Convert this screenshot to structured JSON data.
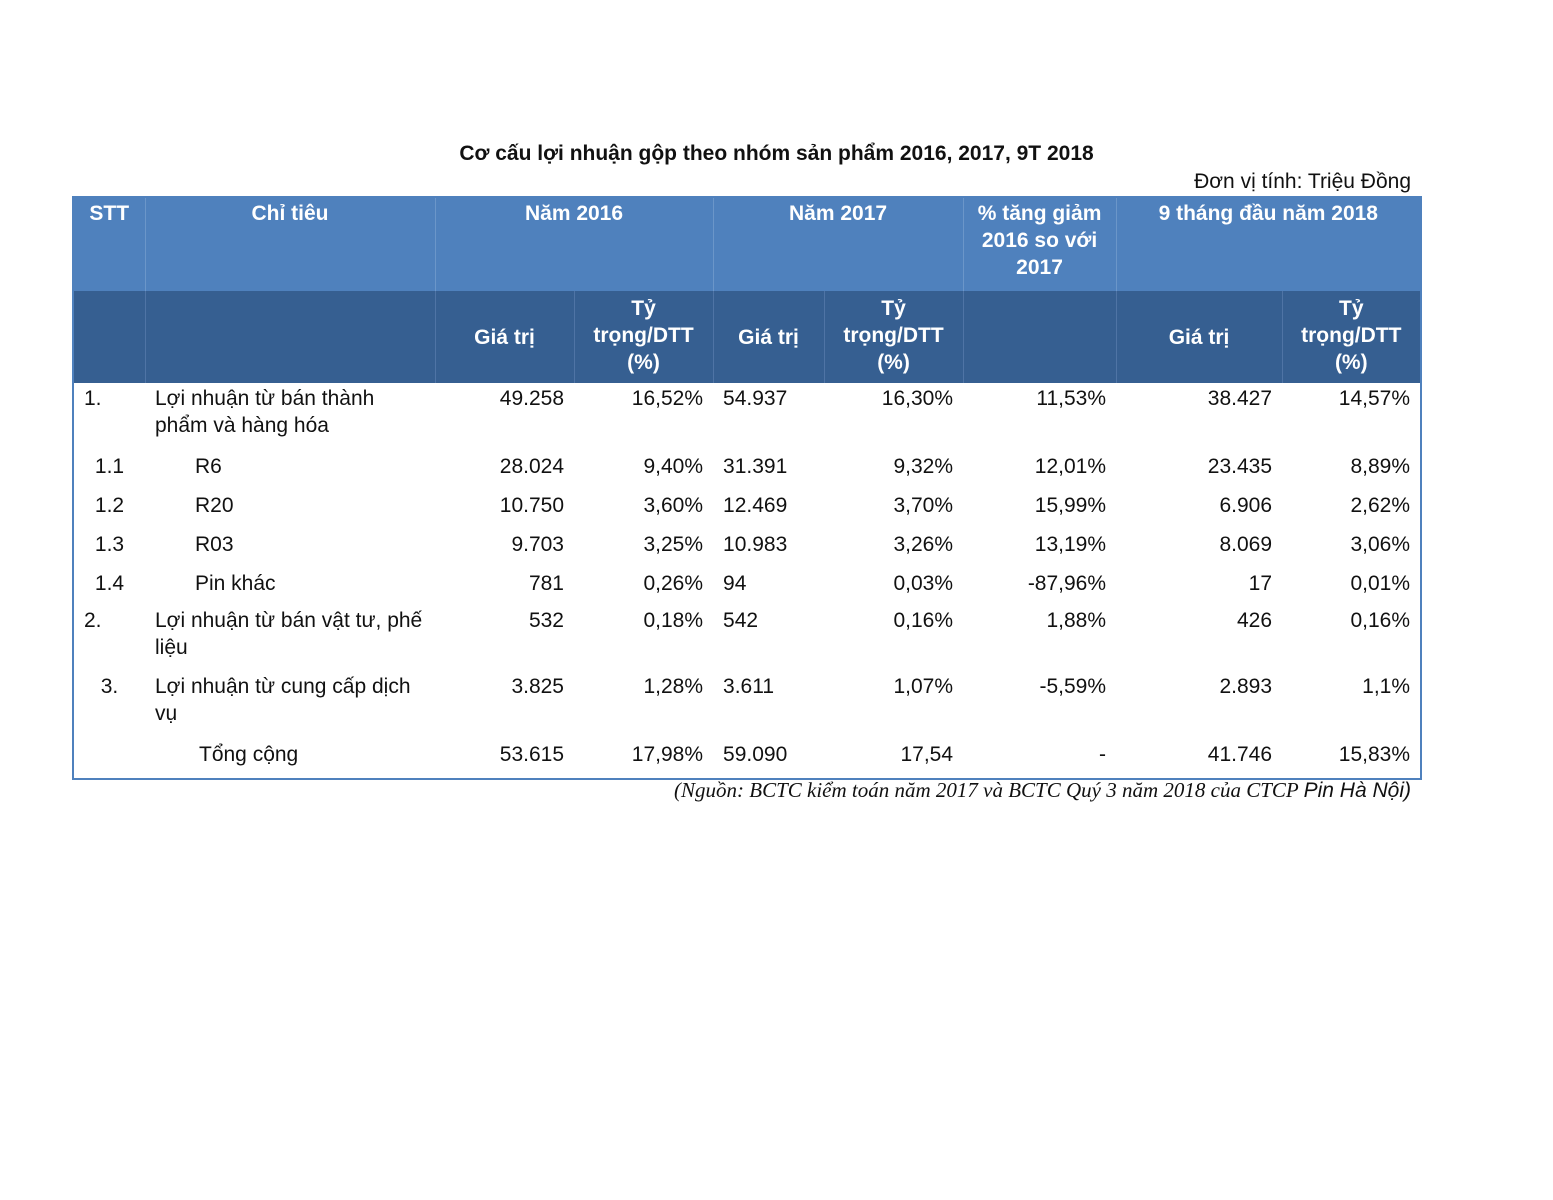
{
  "title": "Cơ cấu lợi nhuận gộp theo nhóm sản phẩm 2016, 2017, 9T 2018",
  "unit": "Đơn vị tính: Triệu Đồng",
  "header": {
    "stt": "STT",
    "chi_tieu": "Chỉ tiêu",
    "nam_2016": "Năm 2016",
    "nam_2017": "Năm 2017",
    "tang_giam": "% tăng giảm 2016 so với 2017",
    "nam_2018": "9 tháng đầu năm 2018",
    "gia_tri": "Giá trị",
    "ty_trong": "Tỷ trọng/DTT (%)"
  },
  "rows": [
    {
      "stt": "1.",
      "label": "Lợi nhuận từ bán thành phẩm và hàng hóa",
      "v2016": "49.258",
      "p2016": "16,52%",
      "v2017": "54.937",
      "p2017": "16,30%",
      "change": "11,53%",
      "v2018": "38.427",
      "p2018": "14,57%"
    },
    {
      "stt": "1.1",
      "label": "R6",
      "v2016": "28.024",
      "p2016": "9,40%",
      "v2017": "31.391",
      "p2017": "9,32%",
      "change": "12,01%",
      "v2018": "23.435",
      "p2018": "8,89%"
    },
    {
      "stt": "1.2",
      "label": "R20",
      "v2016": "10.750",
      "p2016": "3,60%",
      "v2017": "12.469",
      "p2017": "3,70%",
      "change": "15,99%",
      "v2018": "6.906",
      "p2018": "2,62%"
    },
    {
      "stt": "1.3",
      "label": "R03",
      "v2016": "9.703",
      "p2016": "3,25%",
      "v2017": "10.983",
      "p2017": "3,26%",
      "change": "13,19%",
      "v2018": "8.069",
      "p2018": "3,06%"
    },
    {
      "stt": "1.4",
      "label": "Pin khác",
      "v2016": "781",
      "p2016": "0,26%",
      "v2017": "94",
      "p2017": "0,03%",
      "change": "-87,96%",
      "v2018": "17",
      "p2018": "0,01%"
    },
    {
      "stt": "2.",
      "label": "Lợi nhuận từ bán vật tư, phế liệu",
      "v2016": "532",
      "p2016": "0,18%",
      "v2017": "542",
      "p2017": "0,16%",
      "change": "1,88%",
      "v2018": "426",
      "p2018": "0,16%"
    },
    {
      "stt": "3.",
      "label": "Lợi nhuận từ cung cấp dịch vụ",
      "v2016": "3.825",
      "p2016": "1,28%",
      "v2017": "3.611",
      "p2017": "1,07%",
      "change": "-5,59%",
      "v2018": "2.893",
      "p2018": "1,1%"
    },
    {
      "stt": "",
      "label": "Tổng cộng",
      "v2016": "53.615",
      "p2016": "17,98%",
      "v2017": "59.090",
      "p2017": "17,54",
      "change": "-",
      "v2018": "41.746",
      "p2018": "15,83%"
    }
  ],
  "source": {
    "italic_part": "(Nguồn: BCTC kiểm toán năm 2017 và BCTC Quý 3 năm 2018 của CTCP",
    "plain_part": "Pin Hà Nội)"
  }
}
